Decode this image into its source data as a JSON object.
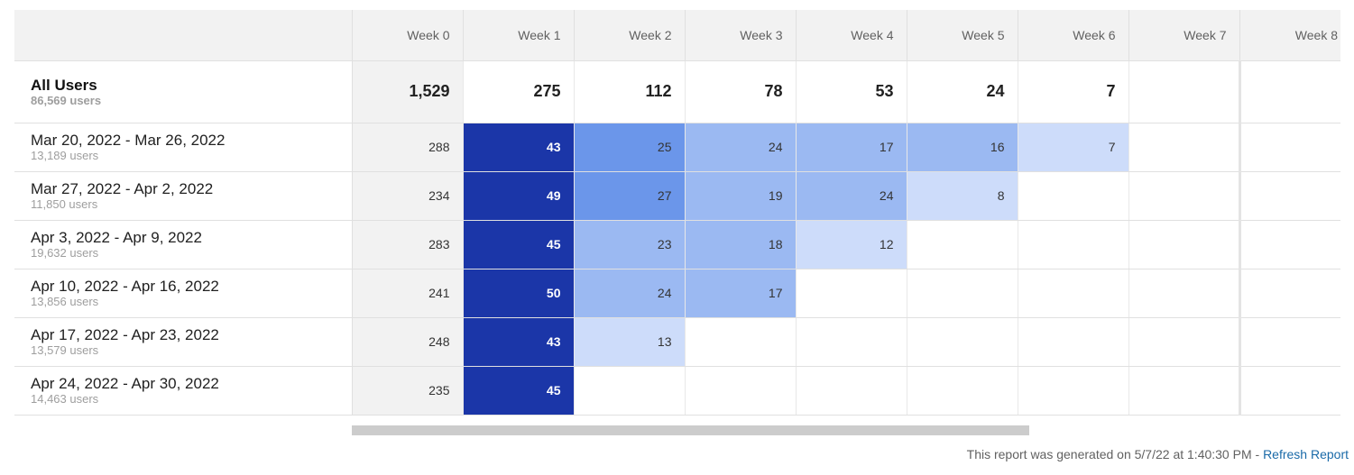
{
  "headers": [
    "Week 0",
    "Week 1",
    "Week 2",
    "Week 3",
    "Week 4",
    "Week 5",
    "Week 6",
    "Week 7",
    "Week 8"
  ],
  "total": {
    "title": "All Users",
    "subtitle": "86,569 users",
    "values": [
      "1,529",
      "275",
      "112",
      "78",
      "53",
      "24",
      "7",
      "",
      ""
    ]
  },
  "cohorts": [
    {
      "title": "Mar 20, 2022 - Mar 26, 2022",
      "subtitle": "13,189 users",
      "values": [
        "288",
        "43",
        "25",
        "24",
        "17",
        "16",
        "7",
        "",
        ""
      ],
      "levels": [
        0,
        4,
        3,
        2,
        2,
        2,
        1,
        0,
        0
      ]
    },
    {
      "title": "Mar 27, 2022 - Apr 2, 2022",
      "subtitle": "11,850 users",
      "values": [
        "234",
        "49",
        "27",
        "19",
        "24",
        "8",
        "",
        "",
        ""
      ],
      "levels": [
        0,
        4,
        3,
        2,
        2,
        1,
        0,
        0,
        0
      ]
    },
    {
      "title": "Apr 3, 2022 - Apr 9, 2022",
      "subtitle": "19,632 users",
      "values": [
        "283",
        "45",
        "23",
        "18",
        "12",
        "",
        "",
        "",
        ""
      ],
      "levels": [
        0,
        4,
        2,
        2,
        1,
        0,
        0,
        0,
        0
      ]
    },
    {
      "title": "Apr 10, 2022 - Apr 16, 2022",
      "subtitle": "13,856 users",
      "values": [
        "241",
        "50",
        "24",
        "17",
        "",
        "",
        "",
        "",
        ""
      ],
      "levels": [
        0,
        4,
        2,
        2,
        0,
        0,
        0,
        0,
        0
      ]
    },
    {
      "title": "Apr 17, 2022 - Apr 23, 2022",
      "subtitle": "13,579 users",
      "values": [
        "248",
        "43",
        "13",
        "",
        "",
        "",
        "",
        "",
        ""
      ],
      "levels": [
        0,
        4,
        1,
        0,
        0,
        0,
        0,
        0,
        0
      ]
    },
    {
      "title": "Apr 24, 2022 - Apr 30, 2022",
      "subtitle": "14,463 users",
      "values": [
        "235",
        "45",
        "",
        "",
        "",
        "",
        "",
        "",
        ""
      ],
      "levels": [
        0,
        4,
        0,
        0,
        0,
        0,
        0,
        0,
        0
      ]
    }
  ],
  "colors": {
    "level4": "#1b36a8",
    "level3": "#6b96ea",
    "level2": "#9bb9f2",
    "level1": "#cddcfa"
  },
  "footer": {
    "text": "This report was generated on 5/7/22 at 1:40:30 PM - ",
    "link": "Refresh Report"
  }
}
